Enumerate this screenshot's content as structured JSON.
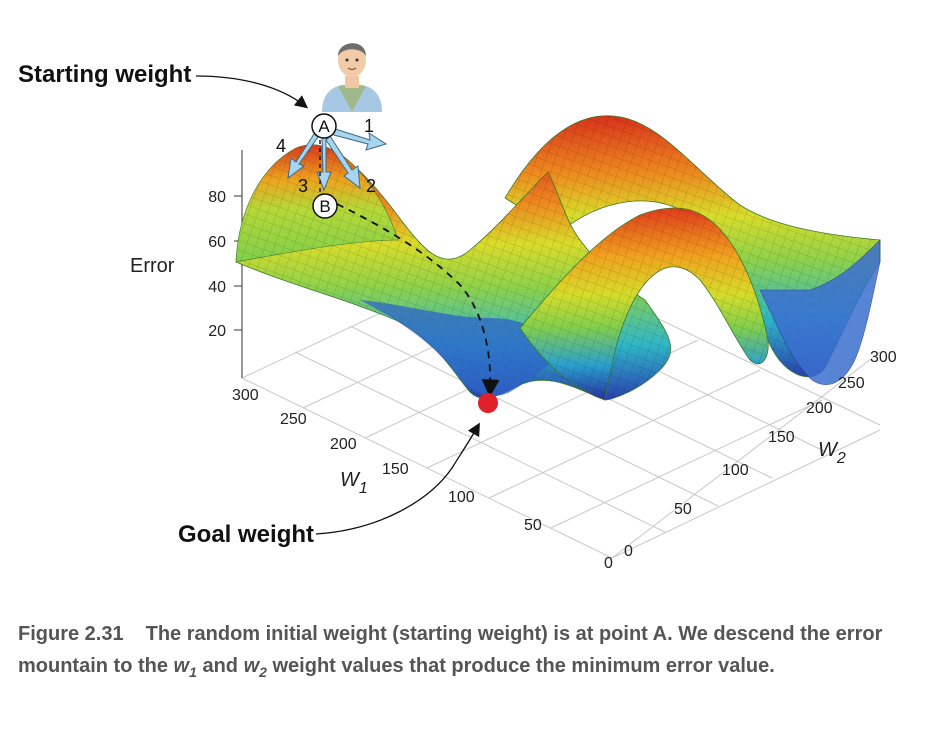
{
  "annotations": {
    "start_label": "Starting weight",
    "goal_label": "Goal weight",
    "point_a": "A",
    "point_b": "B",
    "dir_1": "1",
    "dir_2": "2",
    "dir_3": "3",
    "dir_4": "4"
  },
  "axes": {
    "z_title": "Error",
    "z_ticks": [
      "80",
      "60",
      "40",
      "20"
    ],
    "w1_title": "W",
    "w1_sub": "1",
    "w1_ticks": [
      "300",
      "250",
      "200",
      "150",
      "100",
      "50",
      "0"
    ],
    "w2_title": "W",
    "w2_sub": "2",
    "w2_ticks": [
      "0",
      "50",
      "100",
      "150",
      "200",
      "250",
      "300"
    ]
  },
  "caption": {
    "number": "Figure 2.31",
    "text_1": "The random initial weight (starting weight) is at point A. We descend the error mountain to the ",
    "w1": "w",
    "w1_sub": "1",
    "text_2": " and ",
    "w2": "w",
    "w2_sub": "2",
    "text_3": " weight values that produce the minimum error value."
  },
  "colors": {
    "goal_point": "#e0202a",
    "arrow_fill": "#a8d4ee",
    "surface_high": "#e0301e",
    "surface_mid": "#8ed14a",
    "surface_low": "#2a3fb0"
  }
}
